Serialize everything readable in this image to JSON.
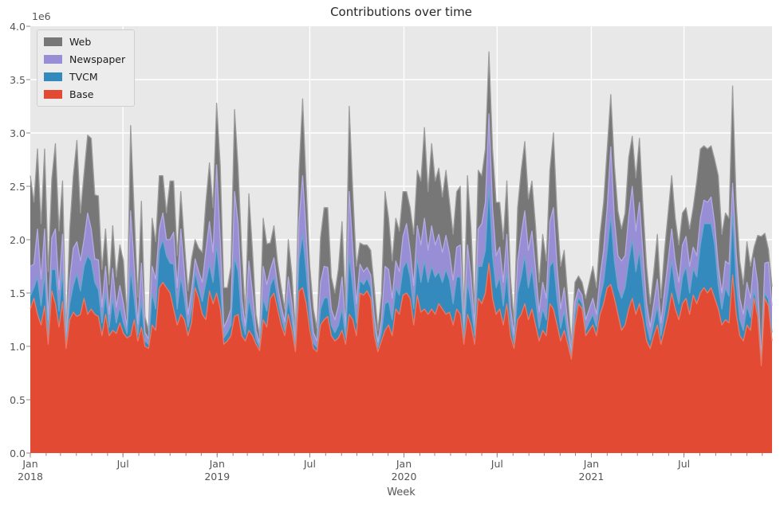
{
  "title": "Contributions over time",
  "xlabel": "Week",
  "axes": {
    "y_offset_label": "1e6",
    "yticks": [
      "0.0",
      "0.5",
      "1.0",
      "1.5",
      "2.0",
      "2.5",
      "3.0",
      "3.5",
      "4.0"
    ],
    "ylim": [
      0,
      4.0
    ],
    "x_major_ticks": [
      {
        "label": "Jan",
        "year": "2018",
        "day": 0
      },
      {
        "label": "Jul",
        "year": "",
        "day": 181
      },
      {
        "label": "Jan",
        "year": "2019",
        "day": 365
      },
      {
        "label": "Jul",
        "year": "",
        "day": 546
      },
      {
        "label": "Jan",
        "year": "2020",
        "day": 730
      },
      {
        "label": "Jul",
        "year": "",
        "day": 912
      },
      {
        "label": "Jan",
        "year": "2021",
        "day": 1096
      },
      {
        "label": "Jul",
        "year": "",
        "day": 1277
      }
    ],
    "x_span_days": 1449,
    "x_minor_tick_interval": "monthly"
  },
  "legend": [
    {
      "label": "Web",
      "color": "#777777"
    },
    {
      "label": "Newspaper",
      "color": "#988ed5"
    },
    {
      "label": "TVCM",
      "color": "#348abd"
    },
    {
      "label": "Base",
      "color": "#e24a33"
    }
  ],
  "colors": {
    "figure_bg": "#ffffff",
    "plot_bg": "#e8e8e8",
    "grid": "#ffffff",
    "tick_mark": "#888888",
    "tick_text": "#555555",
    "title_text": "#262626"
  },
  "chart_data": {
    "type": "area",
    "stacked": true,
    "title": "Contributions over time",
    "xlabel": "Week",
    "x_unit": "weekly points, Jan 2018 - Dec 2021",
    "value_unit_multiplier": 1000000,
    "ylim": [
      0,
      4000000
    ],
    "grid": true,
    "legend_position": "upper left",
    "stack_order_note": "series listed bottom-to-top",
    "series": [
      {
        "name": "Base",
        "color": "#e24a33",
        "edge": "#ea7a66",
        "values": [
          1.35,
          1.45,
          1.3,
          1.2,
          1.38,
          1.02,
          1.52,
          1.4,
          1.18,
          1.42,
          0.98,
          1.25,
          1.32,
          1.28,
          1.3,
          1.45,
          1.3,
          1.35,
          1.3,
          1.28,
          1.1,
          1.3,
          1.1,
          1.15,
          1.12,
          1.22,
          1.12,
          1.08,
          1.1,
          1.25,
          1.05,
          1.18,
          1.0,
          0.98,
          1.2,
          1.15,
          1.55,
          1.6,
          1.55,
          1.5,
          1.35,
          1.2,
          1.3,
          1.25,
          1.1,
          1.22,
          1.55,
          1.45,
          1.3,
          1.25,
          1.52,
          1.4,
          1.5,
          1.35,
          1.02,
          1.05,
          1.1,
          1.28,
          1.3,
          1.1,
          1.05,
          1.15,
          1.1,
          1.02,
          0.96,
          1.25,
          1.18,
          1.45,
          1.5,
          1.35,
          1.2,
          1.1,
          1.3,
          1.15,
          0.95,
          1.52,
          1.55,
          1.4,
          1.15,
          0.98,
          0.95,
          1.2,
          1.25,
          1.28,
          1.1,
          1.05,
          1.08,
          1.15,
          1.02,
          1.3,
          1.25,
          1.1,
          1.5,
          1.48,
          1.52,
          1.45,
          1.1,
          0.95,
          1.05,
          1.15,
          1.2,
          1.1,
          1.35,
          1.3,
          1.48,
          1.5,
          1.45,
          1.2,
          1.48,
          1.32,
          1.35,
          1.3,
          1.35,
          1.3,
          1.4,
          1.35,
          1.3,
          1.32,
          1.2,
          1.35,
          1.3,
          1.02,
          1.3,
          1.2,
          1.02,
          1.45,
          1.4,
          1.5,
          1.78,
          1.45,
          1.3,
          1.35,
          1.2,
          1.4,
          1.1,
          0.98,
          1.25,
          1.3,
          1.4,
          1.25,
          1.35,
          1.2,
          1.05,
          1.15,
          1.1,
          1.4,
          1.35,
          1.2,
          1.05,
          1.15,
          1.02,
          0.88,
          1.2,
          1.4,
          1.35,
          1.1,
          1.15,
          1.2,
          1.1,
          1.3,
          1.4,
          1.55,
          1.58,
          1.45,
          1.3,
          1.15,
          1.2,
          1.35,
          1.45,
          1.3,
          1.4,
          1.25,
          1.05,
          0.98,
          1.1,
          1.2,
          1.02,
          1.15,
          1.3,
          1.5,
          1.35,
          1.25,
          1.4,
          1.45,
          1.3,
          1.48,
          1.4,
          1.5,
          1.55,
          1.5,
          1.55,
          1.45,
          1.35,
          1.2,
          1.25,
          1.22,
          1.67,
          1.3,
          1.1,
          1.05,
          1.2,
          1.15,
          1.45,
          1.28,
          0.82,
          1.45,
          1.38,
          1.05
        ]
      },
      {
        "name": "TVCM",
        "color": "#348abd",
        "edge": "#6fa6cc",
        "values": [
          0.12,
          0.1,
          0.35,
          0.18,
          0.3,
          0.08,
          0.2,
          0.32,
          0.15,
          0.28,
          0.03,
          0.15,
          0.25,
          0.4,
          0.22,
          0.3,
          0.55,
          0.45,
          0.3,
          0.25,
          0.12,
          0.2,
          0.08,
          0.3,
          0.1,
          0.15,
          0.1,
          0.04,
          0.62,
          0.2,
          0.06,
          0.25,
          0.05,
          0.04,
          0.3,
          0.2,
          0.35,
          0.4,
          0.3,
          0.28,
          0.42,
          0.15,
          0.35,
          0.2,
          0.08,
          0.12,
          0.15,
          0.1,
          0.12,
          0.35,
          0.25,
          0.2,
          0.45,
          0.25,
          0.06,
          0.08,
          0.1,
          0.55,
          0.4,
          0.15,
          0.06,
          0.3,
          0.18,
          0.05,
          0.03,
          0.2,
          0.15,
          0.12,
          0.15,
          0.1,
          0.08,
          0.05,
          0.15,
          0.1,
          0.04,
          0.3,
          0.5,
          0.3,
          0.12,
          0.05,
          0.04,
          0.15,
          0.2,
          0.18,
          0.1,
          0.08,
          0.12,
          0.2,
          0.06,
          0.55,
          0.3,
          0.12,
          0.12,
          0.1,
          0.12,
          0.1,
          0.08,
          0.04,
          0.08,
          0.25,
          0.22,
          0.15,
          0.2,
          0.18,
          0.25,
          0.3,
          0.2,
          0.15,
          0.35,
          0.28,
          0.45,
          0.3,
          0.4,
          0.35,
          0.3,
          0.25,
          0.42,
          0.3,
          0.2,
          0.3,
          0.35,
          0.06,
          0.3,
          0.2,
          0.08,
          0.3,
          0.35,
          0.4,
          0.73,
          0.4,
          0.25,
          0.3,
          0.18,
          0.3,
          0.12,
          0.05,
          0.25,
          0.35,
          0.45,
          0.3,
          0.38,
          0.25,
          0.12,
          0.2,
          0.15,
          0.35,
          0.45,
          0.25,
          0.12,
          0.18,
          0.08,
          0.03,
          0.1,
          0.06,
          0.05,
          0.05,
          0.08,
          0.1,
          0.08,
          0.15,
          0.2,
          0.35,
          0.65,
          0.35,
          0.25,
          0.3,
          0.35,
          0.45,
          0.55,
          0.4,
          0.5,
          0.3,
          0.15,
          0.08,
          0.12,
          0.18,
          0.08,
          0.15,
          0.22,
          0.3,
          0.2,
          0.15,
          0.25,
          0.3,
          0.2,
          0.25,
          0.25,
          0.45,
          0.6,
          0.65,
          0.6,
          0.5,
          0.22,
          0.15,
          0.3,
          0.25,
          0.58,
          0.3,
          0.15,
          0.1,
          0.18,
          0.12,
          0.08,
          0.06,
          0.02,
          0.05,
          0.06,
          0.08
        ]
      },
      {
        "name": "Newspaper",
        "color": "#988ed5",
        "edge": "#b4abe2",
        "values": [
          0.28,
          0.22,
          0.45,
          0.25,
          0.42,
          0.15,
          0.3,
          0.38,
          0.2,
          0.35,
          0.05,
          0.22,
          0.35,
          0.3,
          0.28,
          0.25,
          0.4,
          0.3,
          0.22,
          0.28,
          0.15,
          0.25,
          0.12,
          0.28,
          0.15,
          0.2,
          0.18,
          0.06,
          0.55,
          0.3,
          0.1,
          0.35,
          0.08,
          0.05,
          0.25,
          0.28,
          0.2,
          0.25,
          0.15,
          0.22,
          0.3,
          0.2,
          0.45,
          0.25,
          0.12,
          0.18,
          0.12,
          0.15,
          0.18,
          0.3,
          0.4,
          0.28,
          0.75,
          0.4,
          0.1,
          0.12,
          0.15,
          0.62,
          0.45,
          0.2,
          0.08,
          0.35,
          0.22,
          0.08,
          0.04,
          0.3,
          0.25,
          0.15,
          0.18,
          0.12,
          0.1,
          0.08,
          0.2,
          0.15,
          0.06,
          0.35,
          0.55,
          0.35,
          0.18,
          0.1,
          0.06,
          0.25,
          0.3,
          0.28,
          0.15,
          0.12,
          0.18,
          0.3,
          0.1,
          0.6,
          0.35,
          0.18,
          0.15,
          0.12,
          0.1,
          0.12,
          0.1,
          0.05,
          0.12,
          0.35,
          0.3,
          0.2,
          0.25,
          0.22,
          0.3,
          0.35,
          0.25,
          0.22,
          0.3,
          0.35,
          0.4,
          0.3,
          0.38,
          0.3,
          0.35,
          0.28,
          0.32,
          0.25,
          0.22,
          0.28,
          0.3,
          0.08,
          0.35,
          0.25,
          0.1,
          0.35,
          0.4,
          0.45,
          0.67,
          0.45,
          0.3,
          0.28,
          0.22,
          0.35,
          0.15,
          0.08,
          0.3,
          0.4,
          0.42,
          0.35,
          0.35,
          0.28,
          0.15,
          0.25,
          0.2,
          0.42,
          0.5,
          0.3,
          0.18,
          0.22,
          0.12,
          0.04,
          0.12,
          0.08,
          0.08,
          0.1,
          0.12,
          0.15,
          0.12,
          0.2,
          0.3,
          0.4,
          0.64,
          0.4,
          0.3,
          0.35,
          0.3,
          0.42,
          0.5,
          0.38,
          0.45,
          0.3,
          0.2,
          0.12,
          0.18,
          0.25,
          0.12,
          0.22,
          0.28,
          0.3,
          0.25,
          0.2,
          0.3,
          0.28,
          0.25,
          0.2,
          0.2,
          0.25,
          0.22,
          0.2,
          0.25,
          0.2,
          0.18,
          0.15,
          0.25,
          0.3,
          0.28,
          0.28,
          0.2,
          0.15,
          0.22,
          0.18,
          0.3,
          0.25,
          0.04,
          0.28,
          0.35,
          0.25
        ]
      },
      {
        "name": "Web",
        "color": "#777777",
        "edge": "#9c9c9c",
        "values": [
          0.85,
          0.58,
          0.75,
          0.52,
          0.75,
          0.45,
          0.55,
          0.8,
          0.55,
          0.5,
          0.06,
          0.48,
          0.68,
          0.95,
          0.45,
          0.62,
          0.73,
          0.85,
          0.6,
          0.6,
          0.35,
          0.35,
          0.28,
          0.4,
          0.28,
          0.38,
          0.4,
          0.1,
          0.8,
          0.5,
          0.25,
          0.58,
          0.15,
          0.08,
          0.45,
          0.35,
          0.5,
          0.35,
          0.25,
          0.55,
          0.48,
          0.3,
          0.35,
          0.28,
          0.22,
          0.3,
          0.18,
          0.22,
          0.28,
          0.45,
          0.55,
          0.42,
          0.58,
          0.7,
          0.37,
          0.3,
          0.4,
          0.77,
          0.52,
          0.45,
          0.12,
          0.63,
          0.4,
          0.15,
          0.07,
          0.45,
          0.38,
          0.25,
          0.3,
          0.22,
          0.18,
          0.12,
          0.35,
          0.28,
          0.1,
          0.48,
          0.72,
          0.45,
          0.3,
          0.22,
          0.12,
          0.42,
          0.55,
          0.56,
          0.3,
          0.25,
          0.35,
          0.52,
          0.2,
          0.8,
          0.55,
          0.35,
          0.2,
          0.25,
          0.21,
          0.23,
          0.27,
          0.11,
          0.23,
          0.7,
          0.48,
          0.35,
          0.4,
          0.38,
          0.42,
          0.3,
          0.4,
          0.48,
          0.52,
          0.6,
          0.85,
          0.55,
          0.77,
          0.6,
          0.62,
          0.52,
          0.61,
          0.48,
          0.43,
          0.52,
          0.55,
          0.14,
          0.65,
          0.45,
          0.15,
          0.55,
          0.45,
          0.5,
          0.58,
          0.55,
          0.5,
          0.42,
          0.4,
          0.5,
          0.28,
          0.12,
          0.5,
          0.6,
          0.65,
          0.48,
          0.47,
          0.4,
          0.28,
          0.45,
          0.35,
          0.48,
          0.7,
          0.5,
          0.4,
          0.35,
          0.25,
          0.08,
          0.18,
          0.12,
          0.12,
          0.2,
          0.25,
          0.3,
          0.25,
          0.4,
          0.45,
          0.55,
          0.49,
          0.5,
          0.42,
          0.3,
          0.4,
          0.55,
          0.47,
          0.5,
          0.6,
          0.45,
          0.35,
          0.22,
          0.3,
          0.42,
          0.23,
          0.38,
          0.45,
          0.5,
          0.4,
          0.35,
          0.3,
          0.27,
          0.35,
          0.37,
          0.7,
          0.65,
          0.51,
          0.5,
          0.48,
          0.6,
          0.85,
          0.55,
          0.45,
          0.43,
          0.91,
          0.47,
          0.35,
          0.28,
          0.38,
          0.3,
          0.1,
          0.45,
          1.15,
          0.28,
          0.12,
          0.18
        ]
      }
    ]
  }
}
